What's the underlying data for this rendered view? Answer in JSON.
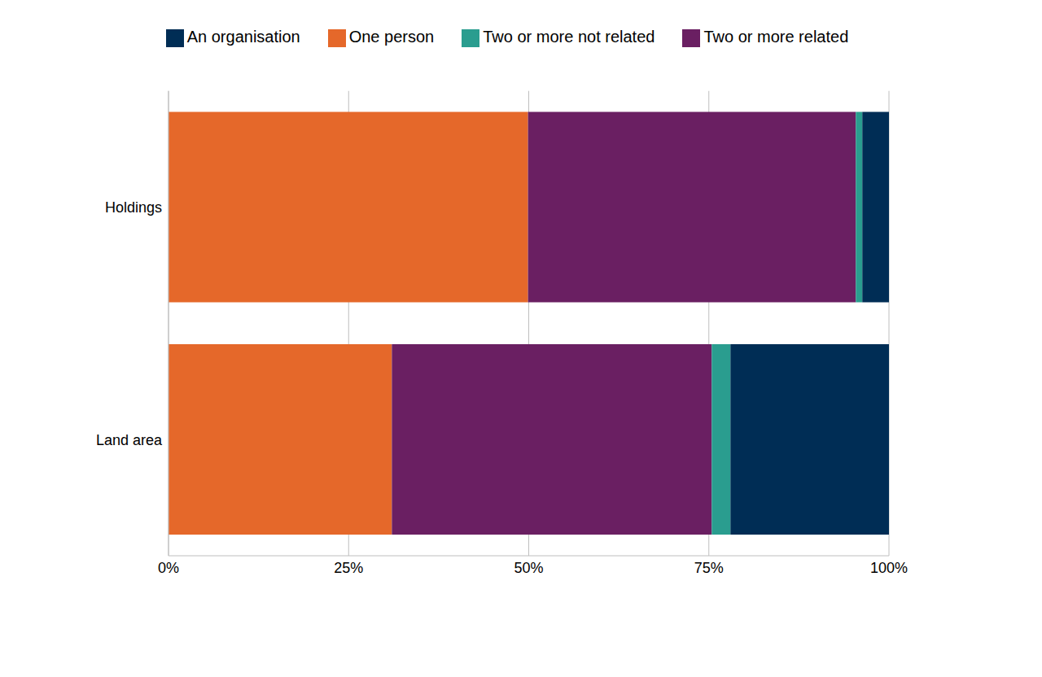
{
  "chart_data": {
    "type": "bar",
    "orientation": "horizontal",
    "stacked": true,
    "grid": true,
    "legend": "top",
    "categories": [
      "Holdings",
      "Land area"
    ],
    "series": [
      {
        "name": "One person",
        "color": "#e5682a",
        "values": [
          49.9,
          31.0
        ]
      },
      {
        "name": "Two or more related",
        "color": "#6a1f62",
        "values": [
          45.5,
          44.4
        ]
      },
      {
        "name": "Two or more not related",
        "color": "#2a9d8f",
        "values": [
          0.9,
          2.6
        ]
      },
      {
        "name": "An organisation",
        "color": "#002d55",
        "values": [
          3.7,
          22.0
        ]
      }
    ],
    "xlim": [
      0,
      100
    ],
    "xticks": [
      {
        "value": 0,
        "label": "0%"
      },
      {
        "value": 25,
        "label": "25%"
      },
      {
        "value": 50,
        "label": "50%"
      },
      {
        "value": 75,
        "label": "75%"
      },
      {
        "value": 100,
        "label": "100%"
      }
    ]
  }
}
